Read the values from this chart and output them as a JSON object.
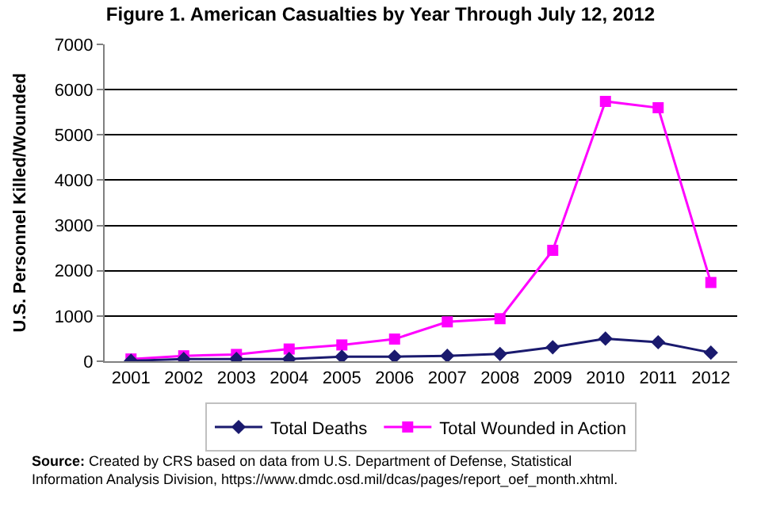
{
  "chart_data": {
    "type": "line",
    "title": "Figure 1. American Casualties by Year Through July 12, 2012",
    "ylabel": "U.S. Personnel Killed/Wounded",
    "categories": [
      "2001",
      "2002",
      "2003",
      "2004",
      "2005",
      "2006",
      "2007",
      "2008",
      "2009",
      "2010",
      "2011",
      "2012"
    ],
    "series": [
      {
        "name": "Total Deaths",
        "color": "#1a1a6e",
        "marker": "diamond",
        "values": [
          10,
          50,
          50,
          50,
          100,
          100,
          120,
          160,
          310,
          500,
          420,
          190
        ]
      },
      {
        "name": "Total Wounded in Action",
        "color": "#ff00ff",
        "marker": "square",
        "values": [
          50,
          120,
          150,
          270,
          360,
          490,
          870,
          940,
          2450,
          5740,
          5600,
          1740
        ]
      }
    ],
    "ylim": [
      0,
      7000
    ],
    "yticks": [
      0,
      1000,
      2000,
      3000,
      4000,
      5000,
      6000,
      7000
    ],
    "grid": "y",
    "legend": "bottom",
    "line_style": "solid",
    "annotations": [
      "Source: Created by CRS based on data from U.S. Department of Defense, Statistical Information Analysis Division, https://www.dmdc.osd.mil/dcas/pages/report_oef_month.xhtml."
    ]
  }
}
